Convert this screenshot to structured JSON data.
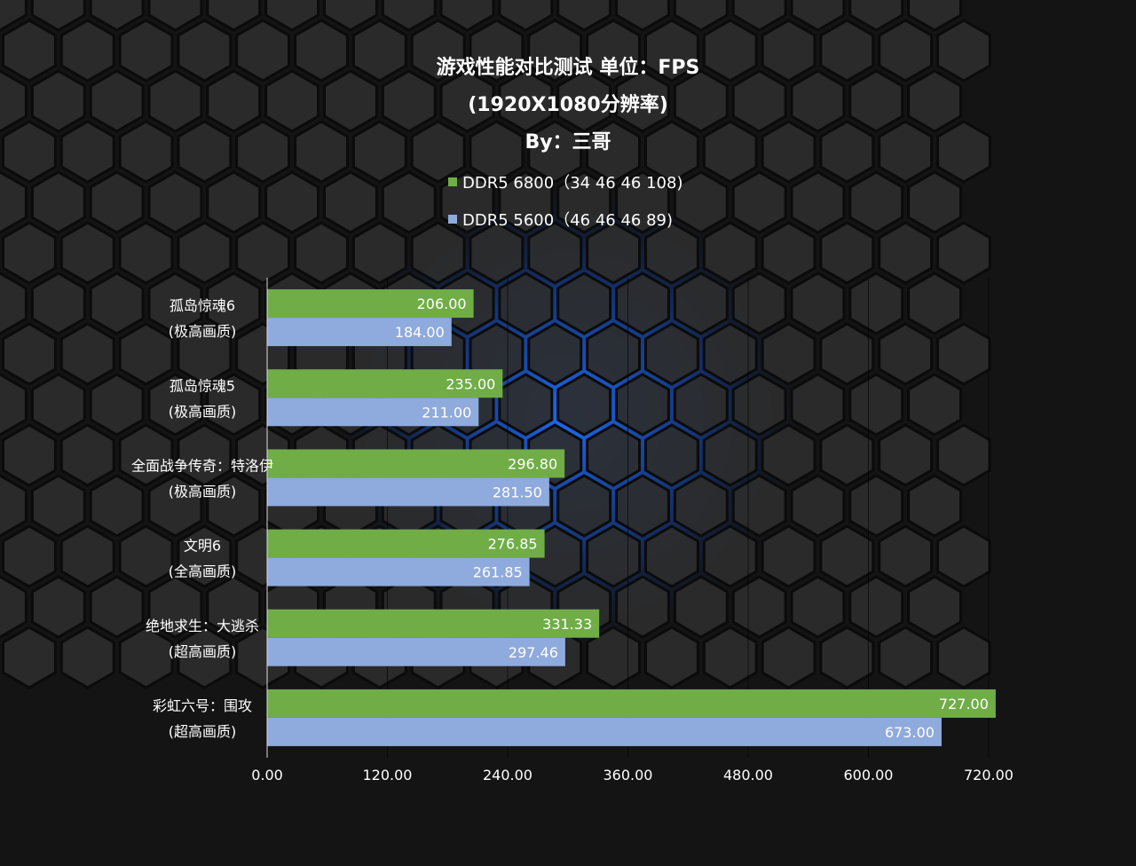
{
  "chart_data": {
    "type": "bar",
    "orientation": "horizontal",
    "title": [
      "游戏性能对比测试 单位：FPS",
      "(1920X1080分辨率)",
      "By：三哥"
    ],
    "categories": [
      [
        "孤岛惊魂6",
        "(极高画质)"
      ],
      [
        "孤岛惊魂5",
        "(极高画质)"
      ],
      [
        "全面战争传奇：特洛伊",
        "(极高画质)"
      ],
      [
        "文明6",
        "(全高画质)"
      ],
      [
        "绝地求生：大逃杀",
        "(超高画质)"
      ],
      [
        "彩虹六号：围攻",
        "(超高画质)"
      ]
    ],
    "series": [
      {
        "name": "DDR5 6800（34 46 46 108)",
        "color": "#70ad47",
        "values": [
          206.0,
          235.0,
          296.8,
          276.85,
          331.33,
          727.0
        ],
        "labels": [
          "206.00",
          "235.00",
          "296.80",
          "276.85",
          "331.33",
          "727.00"
        ]
      },
      {
        "name": "DDR5 5600（46 46 46 89)",
        "color": "#8faadc",
        "values": [
          184.0,
          211.0,
          281.5,
          261.85,
          297.46,
          673.0
        ],
        "labels": [
          "184.00",
          "211.00",
          "281.50",
          "261.85",
          "297.46",
          "673.00"
        ]
      }
    ],
    "xlim": [
      0,
      720
    ],
    "xticks": [
      0,
      120,
      240,
      360,
      480,
      600,
      720
    ],
    "xtick_labels": [
      "0.00",
      "120.00",
      "240.00",
      "360.00",
      "480.00",
      "600.00",
      "720.00"
    ],
    "grid": true,
    "legend_position": "top-center"
  }
}
